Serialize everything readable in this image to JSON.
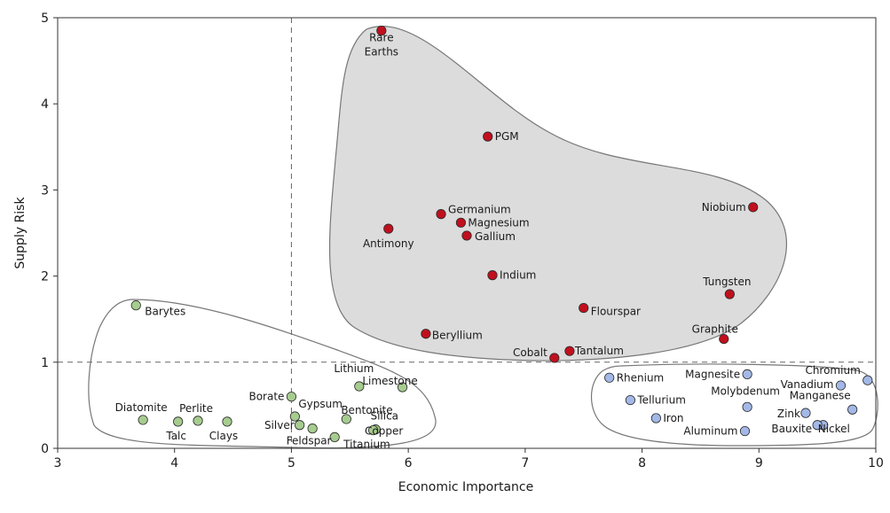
{
  "chart_data": {
    "type": "scatter",
    "title": "",
    "xlabel": "Economic Importance",
    "ylabel": "Supply Risk",
    "xlim": [
      3,
      10
    ],
    "ylim": [
      0,
      5
    ],
    "x_ticks": [
      3,
      4,
      5,
      6,
      7,
      8,
      9,
      10
    ],
    "y_ticks": [
      0,
      1,
      2,
      3,
      4,
      5
    ],
    "grid": false,
    "reference_lines": {
      "x": 5,
      "y": 1,
      "style": "dashed"
    },
    "colors": {
      "high_risk": "#c0101e",
      "low_importance": "#a6cc8f",
      "high_importance": "#a3b8e6",
      "region_fill": "#dcdcdc"
    },
    "series": [
      {
        "color": "#c0101e",
        "points": [
          {
            "label": "Rare Earths",
            "x": 5.77,
            "y": 4.85
          },
          {
            "label": "PGM",
            "x": 6.68,
            "y": 3.62
          },
          {
            "label": "Germanium",
            "x": 6.28,
            "y": 2.72
          },
          {
            "label": "Magnesium",
            "x": 6.45,
            "y": 2.62
          },
          {
            "label": "Antimony",
            "x": 5.83,
            "y": 2.55
          },
          {
            "label": "Gallium",
            "x": 6.5,
            "y": 2.47
          },
          {
            "label": "Niobium",
            "x": 8.95,
            "y": 2.8
          },
          {
            "label": "Indium",
            "x": 6.72,
            "y": 2.01
          },
          {
            "label": "Tungsten",
            "x": 8.75,
            "y": 1.79
          },
          {
            "label": "Flourspar",
            "x": 7.5,
            "y": 1.63
          },
          {
            "label": "Beryllium",
            "x": 6.15,
            "y": 1.33
          },
          {
            "label": "Graphite",
            "x": 8.7,
            "y": 1.27
          },
          {
            "label": "Tantalum",
            "x": 7.38,
            "y": 1.13
          },
          {
            "label": "Cobalt",
            "x": 7.25,
            "y": 1.05
          }
        ]
      },
      {
        "color": "#a6cc8f",
        "points": [
          {
            "label": "Barytes",
            "x": 3.67,
            "y": 1.66
          },
          {
            "label": "Lithium",
            "x": 5.58,
            "y": 0.72
          },
          {
            "label": "Limestone",
            "x": 5.95,
            "y": 0.71
          },
          {
            "label": "Borate",
            "x": 5.0,
            "y": 0.6
          },
          {
            "label": "Gypsum",
            "x": 5.03,
            "y": 0.37
          },
          {
            "label": "Bentonite",
            "x": 5.47,
            "y": 0.34
          },
          {
            "label": "Diatomite",
            "x": 3.73,
            "y": 0.33
          },
          {
            "label": "Talc",
            "x": 4.03,
            "y": 0.31
          },
          {
            "label": "Perlite",
            "x": 4.2,
            "y": 0.32
          },
          {
            "label": "Clays",
            "x": 4.45,
            "y": 0.31
          },
          {
            "label": "Silver",
            "x": 5.07,
            "y": 0.27
          },
          {
            "label": "Feldspar",
            "x": 5.18,
            "y": 0.23
          },
          {
            "label": "Silica",
            "x": 5.72,
            "y": 0.22
          },
          {
            "label": "Copper",
            "x": 5.7,
            "y": 0.21
          },
          {
            "label": "Titanium",
            "x": 5.37,
            "y": 0.13
          }
        ]
      },
      {
        "color": "#a3b8e6",
        "points": [
          {
            "label": "Rhenium",
            "x": 7.72,
            "y": 0.82
          },
          {
            "label": "Magnesite",
            "x": 8.9,
            "y": 0.86
          },
          {
            "label": "Chromium",
            "x": 9.93,
            "y": 0.79
          },
          {
            "label": "Vanadium",
            "x": 9.7,
            "y": 0.73
          },
          {
            "label": "Tellurium",
            "x": 7.9,
            "y": 0.56
          },
          {
            "label": "Molybdenum",
            "x": 8.9,
            "y": 0.48
          },
          {
            "label": "Manganese",
            "x": 9.8,
            "y": 0.45
          },
          {
            "label": "Zink",
            "x": 9.4,
            "y": 0.41
          },
          {
            "label": "Iron",
            "x": 8.12,
            "y": 0.35
          },
          {
            "label": "Nickel",
            "x": 9.55,
            "y": 0.27
          },
          {
            "label": "Bauxite",
            "x": 9.5,
            "y": 0.27
          },
          {
            "label": "Aluminum",
            "x": 8.88,
            "y": 0.2
          }
        ]
      }
    ]
  }
}
